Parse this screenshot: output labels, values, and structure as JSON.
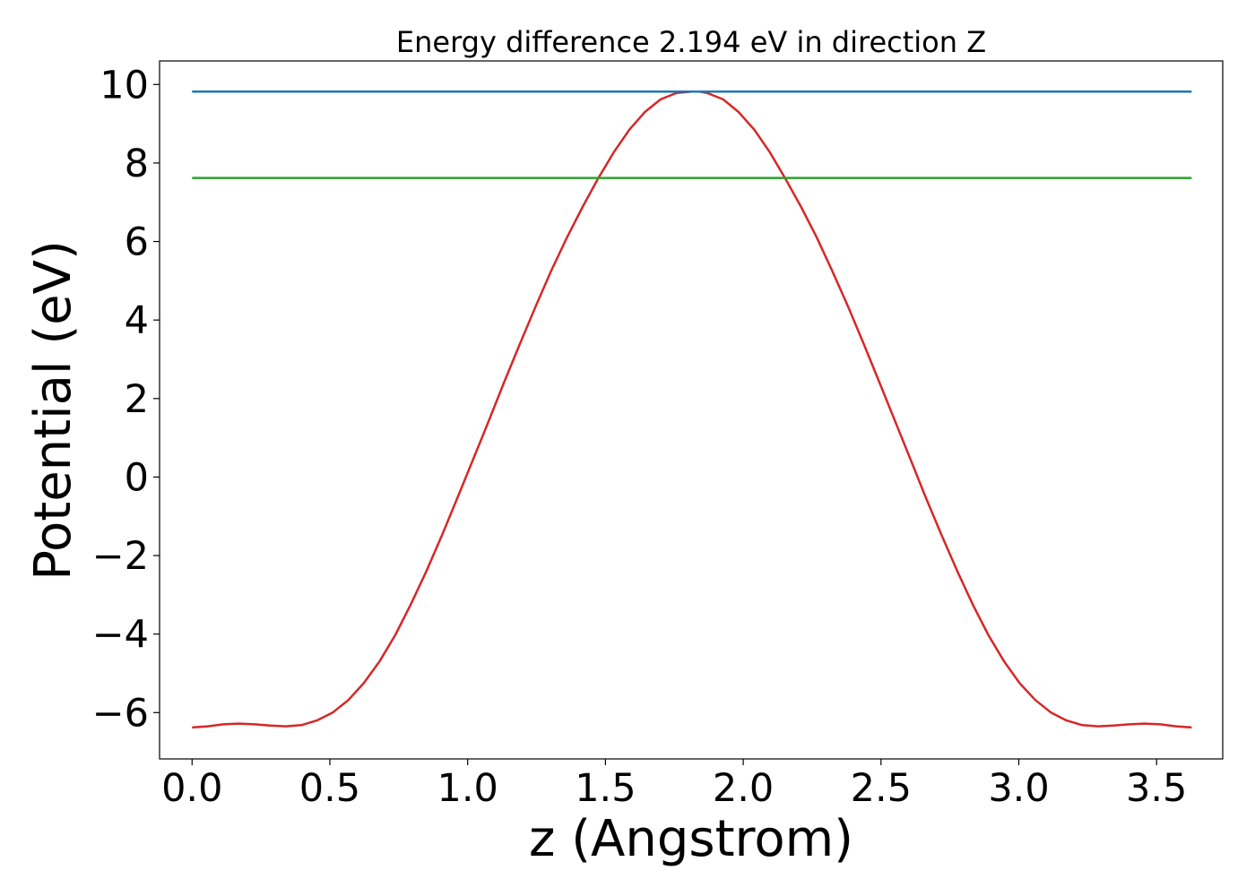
{
  "chart_data": {
    "type": "line",
    "title": "Energy difference 2.194 eV in direction Z",
    "xlabel": "z (Angstrom)",
    "ylabel": "Potential (eV)",
    "xlim": [
      -0.118,
      3.74
    ],
    "ylim": [
      -7.18,
      10.6
    ],
    "xticks": [
      0.0,
      0.5,
      1.0,
      1.5,
      2.0,
      2.5,
      3.0,
      3.5
    ],
    "xtick_labels": [
      "0.0",
      "0.5",
      "1.0",
      "1.5",
      "2.0",
      "2.5",
      "3.0",
      "3.5"
    ],
    "yticks": [
      -6,
      -4,
      -2,
      0,
      2,
      4,
      6,
      8,
      10
    ],
    "ytick_labels": [
      "−6",
      "−4",
      "−2",
      "0",
      "2",
      "4",
      "6",
      "8",
      "10"
    ],
    "grid": false,
    "legend": "none",
    "series": [
      {
        "color": "#d62728",
        "x": [
          0.0,
          0.057,
          0.113,
          0.17,
          0.227,
          0.283,
          0.34,
          0.397,
          0.453,
          0.51,
          0.567,
          0.623,
          0.68,
          0.737,
          0.793,
          0.85,
          0.907,
          0.963,
          1.02,
          1.077,
          1.133,
          1.19,
          1.247,
          1.303,
          1.36,
          1.417,
          1.473,
          1.53,
          1.587,
          1.643,
          1.7,
          1.757,
          1.813,
          1.84,
          1.87,
          1.927,
          1.983,
          2.04,
          2.097,
          2.153,
          2.21,
          2.267,
          2.323,
          2.38,
          2.437,
          2.493,
          2.55,
          2.607,
          2.663,
          2.72,
          2.777,
          2.833,
          2.89,
          2.947,
          3.003,
          3.06,
          3.117,
          3.173,
          3.23,
          3.287,
          3.343,
          3.4,
          3.457,
          3.513,
          3.57,
          3.627
        ],
        "y": [
          -6.38,
          -6.35,
          -6.3,
          -6.28,
          -6.3,
          -6.33,
          -6.35,
          -6.32,
          -6.2,
          -6.0,
          -5.68,
          -5.25,
          -4.7,
          -4.03,
          -3.25,
          -2.4,
          -1.48,
          -0.53,
          0.45,
          1.44,
          2.43,
          3.4,
          4.35,
          5.25,
          6.1,
          6.88,
          7.6,
          8.27,
          8.85,
          9.3,
          9.62,
          9.78,
          9.82,
          9.82,
          9.78,
          9.62,
          9.3,
          8.85,
          8.27,
          7.6,
          6.88,
          6.1,
          5.25,
          4.35,
          3.4,
          2.43,
          1.44,
          0.45,
          -0.53,
          -1.48,
          -2.4,
          -3.25,
          -4.03,
          -4.7,
          -5.25,
          -5.68,
          -6.0,
          -6.2,
          -6.32,
          -6.35,
          -6.33,
          -6.3,
          -6.28,
          -6.3,
          -6.35,
          -6.38
        ]
      },
      {
        "color": "#1f77b4",
        "x": [
          0.0,
          3.627
        ],
        "y": [
          9.82,
          9.82
        ]
      },
      {
        "color": "#2ca02c",
        "x": [
          0.0,
          3.627
        ],
        "y": [
          7.62,
          7.62
        ]
      }
    ]
  }
}
